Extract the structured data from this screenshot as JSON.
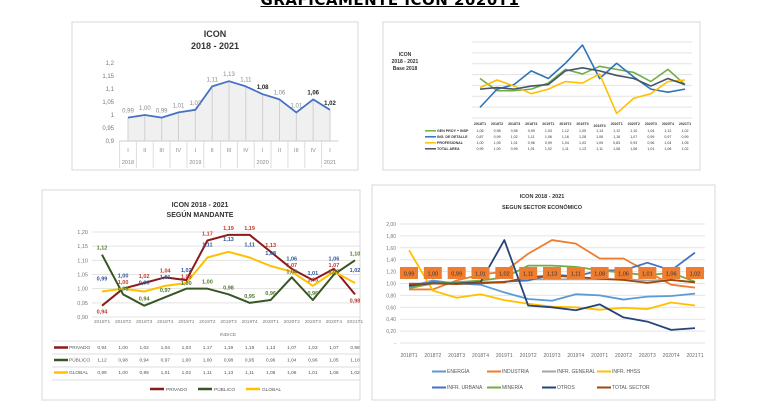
{
  "page_title": "GRAFICAMENTE ICON 2020T1",
  "chart_data": [
    {
      "type": "area",
      "title": [
        "ICON",
        "2018 - 2021"
      ],
      "categories": [
        "I",
        "II",
        "III",
        "IV",
        "I",
        "II",
        "III",
        "IV",
        "I",
        "II",
        "III",
        "IV",
        "I"
      ],
      "years": [
        "2018",
        "",
        "",
        "",
        "2019",
        "",
        "",
        "",
        "2020",
        "",
        "",
        "",
        "2021"
      ],
      "ylim": [
        0.9,
        1.2
      ],
      "yticks": [
        "0,9",
        "0,95",
        "1",
        "1,05",
        "1,1",
        "1,15",
        "1,2"
      ],
      "grid": false,
      "series": [
        {
          "values": [
            0.99,
            1.0,
            0.99,
            1.01,
            1.02,
            1.11,
            1.13,
            1.11,
            1.08,
            1.06,
            1.01,
            1.06,
            1.02
          ],
          "color": "#4472c4"
        }
      ],
      "data_labels": [
        "0,99",
        "1,00",
        "0,99",
        "1,01",
        "1,02",
        "1,11",
        "1,13",
        "1,11",
        "1,08",
        "1,06",
        "1,01",
        "1,06",
        "1,02"
      ]
    },
    {
      "type": "line",
      "title": [
        "ICON",
        "2018 - 2021",
        "Base 2018"
      ],
      "categories": [
        "2018T1",
        "2018T2",
        "2018T3",
        "2018T4",
        "2019T1",
        "2019T2",
        "2019T3",
        "2019T4",
        "2020T1",
        "2020T2",
        "2020T3",
        "2020T4",
        "2021T1"
      ],
      "ylim": [
        0.8,
        1.3
      ],
      "grid": true,
      "legend": "table-left",
      "series": [
        {
          "name": "GEN PROY + INSP",
          "color": "#70ad47",
          "values": [
            1.06,
            0.98,
            0.98,
            0.99,
            1.03,
            1.12,
            1.09,
            1.14,
            1.12,
            1.1,
            1.04,
            1.12,
            1.02
          ]
        },
        {
          "name": "ING. DE DETALLE",
          "color": "#2e75b6",
          "values": [
            0.87,
            0.99,
            1.02,
            1.11,
            1.06,
            1.16,
            1.28,
            1.06,
            1.16,
            1.07,
            0.99,
            0.97,
            0.99
          ]
        },
        {
          "name": "PROFESIONAL",
          "color": "#ffc000",
          "values": [
            1.0,
            1.05,
            1.01,
            0.96,
            0.99,
            1.04,
            1.03,
            1.09,
            0.83,
            0.93,
            0.96,
            1.04,
            1.05
          ]
        },
        {
          "name": "TOTAL AREA",
          "color": "#44546a",
          "values": [
            0.99,
            1.0,
            0.99,
            1.01,
            1.02,
            1.11,
            1.13,
            1.11,
            1.08,
            1.06,
            1.01,
            1.06,
            1.02
          ]
        }
      ]
    },
    {
      "type": "line",
      "title": [
        "ICON 2018 - 2021",
        "SEGÚN MANDANTE"
      ],
      "categories": [
        "2018T1",
        "2018T2",
        "2018T3",
        "2018T4",
        "2019T1",
        "2019T2",
        "2019T3",
        "2019T4",
        "2020T1",
        "2020T2",
        "2020T3",
        "2020T4",
        "2021T1"
      ],
      "xlabel": "INDICE",
      "ylim": [
        0.9,
        1.2
      ],
      "yticks": [
        "0,90",
        "0,95",
        "1,00",
        "1,05",
        "1,10",
        "1,15",
        "1,20"
      ],
      "grid": true,
      "legend": "bottom",
      "series": [
        {
          "name": "PRIVADO",
          "color": "#8b1a1a",
          "label_color": "#c0392b",
          "values": [
            0.94,
            1.0,
            1.02,
            1.04,
            1.03,
            1.17,
            1.19,
            1.19,
            1.13,
            1.07,
            1.03,
            1.07,
            0.98
          ]
        },
        {
          "name": "PÚBLICO",
          "color": "#375623",
          "label_color": "#4e7a2e",
          "values": [
            1.12,
            0.98,
            0.94,
            0.97,
            1.0,
            1.0,
            0.98,
            0.95,
            0.96,
            1.04,
            0.96,
            1.05,
            1.1
          ]
        },
        {
          "name": "GLOBAL",
          "color": "#ffc000",
          "label_color": "#2f5597",
          "values": [
            0.99,
            1.0,
            0.99,
            1.01,
            1.02,
            1.11,
            1.13,
            1.11,
            1.08,
            1.06,
            1.01,
            1.06,
            1.02
          ]
        }
      ]
    },
    {
      "type": "line",
      "title": [
        "ICON 2018 - 2021",
        "SEGUN SECTOR ECONÓMICO"
      ],
      "categories": [
        "2018T1",
        "2018T2",
        "2018T3",
        "2018T4",
        "2019T1",
        "2019T2",
        "2019T3",
        "2019T4",
        "2020T1",
        "2020T2",
        "2020T3",
        "2020T4",
        "2021T1"
      ],
      "ylim": [
        0,
        2.0
      ],
      "yticks": [
        "-",
        "0,20",
        "0,40",
        "0,60",
        "0,80",
        "1,00",
        "1,20",
        "1,40",
        "1,60",
        "1,80",
        "2,00"
      ],
      "grid": true,
      "legend": "bottom",
      "series": [
        {
          "name": "ENERGÍA",
          "color": "#5b9bd5",
          "values": [
            0.95,
            1.05,
            1.0,
            0.98,
            0.85,
            0.74,
            0.71,
            0.82,
            0.8,
            0.73,
            0.78,
            0.79,
            0.83
          ]
        },
        {
          "name": "INDUSTRIA",
          "color": "#ed7d31",
          "values": [
            0.9,
            0.9,
            1.05,
            1.15,
            1.2,
            1.5,
            1.73,
            1.67,
            1.42,
            1.42,
            1.2,
            0.98,
            0.93
          ]
        },
        {
          "name": "INFR. GENERAL",
          "color": "#a5a5a5",
          "values": [
            1.0,
            1.0,
            1.0,
            1.02,
            1.03,
            1.07,
            1.07,
            1.07,
            1.07,
            1.07,
            1.05,
            1.06,
            1.02
          ]
        },
        {
          "name": "INFR. HHSS",
          "color": "#ffc000",
          "values": [
            1.56,
            0.88,
            0.76,
            0.82,
            0.72,
            0.66,
            0.61,
            0.6,
            0.56,
            0.59,
            0.57,
            0.68,
            0.63
          ]
        },
        {
          "name": "INFR. URBANA",
          "color": "#4472c4",
          "values": [
            0.95,
            1.02,
            1.0,
            1.0,
            1.03,
            1.05,
            1.15,
            1.12,
            1.22,
            1.22,
            1.35,
            1.22,
            1.52
          ]
        },
        {
          "name": "MINERÍA",
          "color": "#70ad47",
          "values": [
            0.92,
            1.0,
            1.02,
            1.05,
            1.1,
            1.3,
            1.3,
            1.28,
            1.22,
            1.18,
            1.14,
            1.18,
            1.03
          ]
        },
        {
          "name": "OTROS",
          "color": "#264478",
          "values": [
            0.97,
            1.0,
            1.0,
            1.02,
            1.73,
            0.63,
            0.6,
            0.55,
            0.65,
            0.43,
            0.36,
            0.22,
            0.25
          ]
        },
        {
          "name": "TOTAL SECTOR",
          "color": "#9e480e",
          "values": [
            0.99,
            1.0,
            0.99,
            1.01,
            1.02,
            1.11,
            1.13,
            1.11,
            1.08,
            1.06,
            1.01,
            1.06,
            1.02
          ]
        }
      ],
      "data_labels": [
        "0,99",
        "1,00",
        "0,99",
        "1,01",
        "1,02",
        "1,11",
        "1,13",
        "1,11",
        "1,08",
        "1,06",
        "1,01",
        "1,06",
        "1,02"
      ],
      "data_label_bg": "#ed7d31"
    }
  ]
}
